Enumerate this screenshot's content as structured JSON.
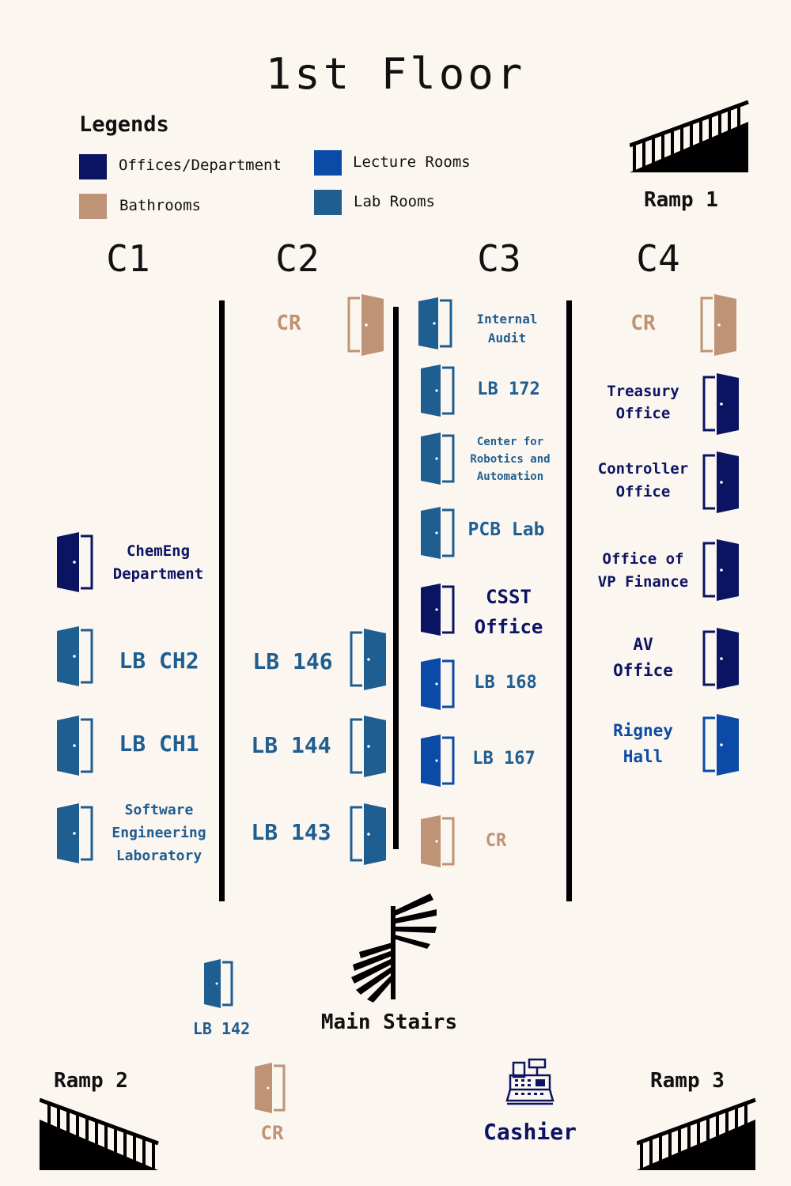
{
  "title": "1st Floor",
  "legend": {
    "heading": "Legends",
    "items": [
      {
        "label": "Offices/Department",
        "color": "#0b1463"
      },
      {
        "label": "Lecture Rooms",
        "color": "#0b4aa6"
      },
      {
        "label": "Bathrooms",
        "color": "#be9376"
      },
      {
        "label": "Lab Rooms",
        "color": "#1f5e91"
      }
    ]
  },
  "columns": [
    "C1",
    "C2",
    "C3",
    "C4"
  ],
  "ramps": {
    "r1": "Ramp 1",
    "r2": "Ramp 2",
    "r3": "Ramp 3"
  },
  "rooms": {
    "c1": {
      "cheme_l1": "ChemEng",
      "cheme_l2": "Department",
      "lbch2": "LB CH2",
      "lbch1": "LB CH1",
      "se_l1": "Software",
      "se_l2": "Engineering",
      "se_l3": "Laboratory"
    },
    "c2": {
      "cr": "CR",
      "lb146": "LB 146",
      "lb144": "LB 144",
      "lb143": "LB 143"
    },
    "c3": {
      "ia_l1": "Internal",
      "ia_l2": "Audit",
      "lb172": "LB 172",
      "cra_l1": "Center for",
      "cra_l2": "Robotics and",
      "cra_l3": "Automation",
      "pcb": "PCB Lab",
      "csst_l1": "CSST",
      "csst_l2": "Office",
      "lb168": "LB 168",
      "lb167": "LB 167",
      "cr": "CR"
    },
    "c4": {
      "cr": "CR",
      "tr_l1": "Treasury",
      "tr_l2": "Office",
      "co_l1": "Controller",
      "co_l2": "Office",
      "vp_l1": "Office of",
      "vp_l2": "VP Finance",
      "av_l1": "AV",
      "av_l2": "Office",
      "rh_l1": "Rigney",
      "rh_l2": "Hall"
    },
    "bottom": {
      "lb142": "LB 142",
      "stairs": "Main Stairs",
      "cr": "CR",
      "cashier": "Cashier"
    }
  },
  "icons": {
    "door": "door-icon",
    "ramp": "ramp-icon",
    "stairs": "spiral-stairs-icon",
    "cashier": "cash-register-icon"
  }
}
